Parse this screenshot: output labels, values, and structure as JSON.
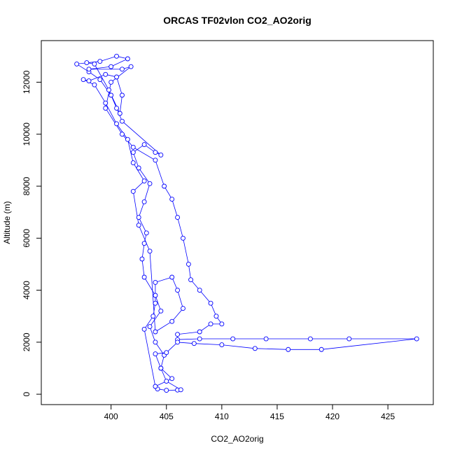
{
  "chart_data": {
    "type": "scatter",
    "title": "ORCAS TF02vlon CO2_AO2orig",
    "xlabel": "CO2_AO2orig",
    "ylabel": "Altitude (m)",
    "color": "#0000ff",
    "line": true,
    "xlim": [
      393.7,
      429.1
    ],
    "ylim": [
      -400,
      13600
    ],
    "xticks": [
      400,
      405,
      410,
      415,
      420,
      425
    ],
    "yticks": [
      0,
      2000,
      4000,
      6000,
      8000,
      10000,
      12000
    ],
    "x": [
      404.2,
      405,
      406,
      406.3,
      405,
      404.5,
      404.8,
      404,
      403.5,
      404.5,
      404,
      403,
      402.8,
      403,
      403.2,
      402.5,
      403,
      403.5,
      402.5,
      402,
      403,
      404,
      404.5,
      401,
      400.5,
      400,
      399,
      398,
      396.9,
      399,
      400.5,
      401.5,
      400,
      398,
      401,
      401.8,
      400,
      399.5,
      401,
      402,
      404,
      404.8,
      405.5,
      406,
      406.5,
      407,
      407.2,
      408,
      409,
      409.5,
      410,
      409,
      408,
      406,
      406,
      408,
      411,
      414,
      418,
      421.5,
      427.6,
      419,
      416,
      413,
      410,
      407.5,
      406,
      405,
      404,
      404.5,
      405.5,
      404,
      403,
      403.8,
      404,
      404,
      405.5,
      406,
      406.5,
      405.5,
      404,
      403.5,
      402.5,
      402,
      403,
      402,
      401.5,
      400.5,
      399.5,
      398.5,
      397.5,
      398,
      399.5,
      400.5,
      401,
      400.8,
      399.8,
      398.5,
      397.8
    ],
    "values": [
      200,
      150,
      160,
      170,
      500,
      1000,
      1500,
      2000,
      2600,
      3200,
      3800,
      4500,
      5200,
      5800,
      6200,
      6800,
      7400,
      8100,
      8700,
      9300,
      9600,
      9300,
      9200,
      10500,
      11000,
      11500,
      12100,
      12400,
      12700,
      12800,
      13000,
      12900,
      12600,
      12500,
      12500,
      12600,
      12000,
      11000,
      10000,
      9500,
      9000,
      8000,
      7500,
      6800,
      6000,
      5000,
      4400,
      4000,
      3500,
      3000,
      2700,
      2700,
      2400,
      2300,
      2100,
      2130,
      2130,
      2130,
      2130,
      2130,
      2130,
      1720,
      1720,
      1760,
      1900,
      1950,
      2000,
      1600,
      1550,
      1000,
      600,
      300,
      2500,
      3000,
      3500,
      4300,
      4500,
      4000,
      3300,
      2800,
      2400,
      5500,
      6500,
      7800,
      8200,
      8900,
      9800,
      10400,
      11200,
      11900,
      12100,
      12050,
      12300,
      12200,
      11500,
      10800,
      11700,
      12700,
      12750
    ]
  }
}
